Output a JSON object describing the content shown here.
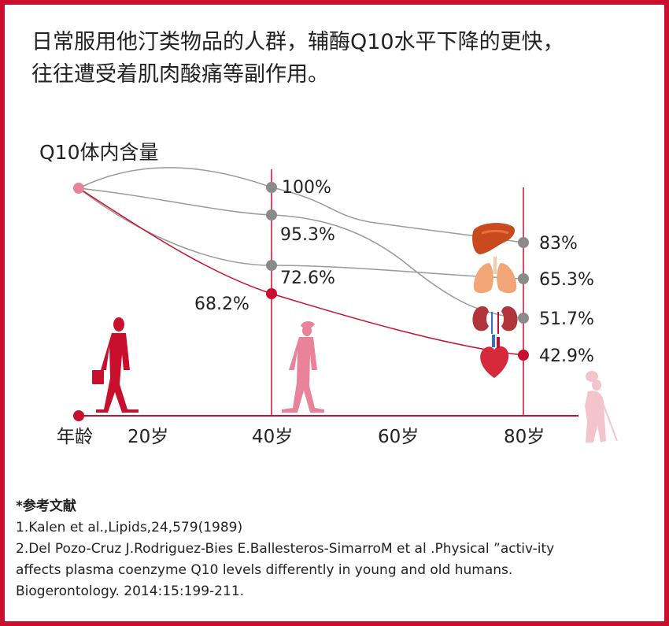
{
  "headline": {
    "line1": "日常服用他汀类物品的人群，辅酶Q10水平下降的更快，",
    "line2": "往往遭受着肌肉酸痛等副作用。"
  },
  "chart_data": {
    "type": "line",
    "ylabel": "Q10体内含量",
    "xlabel": "年龄",
    "x_ticks": [
      "20岁",
      "40岁",
      "60岁",
      "80岁"
    ],
    "series": [
      {
        "organ": "liver-icon",
        "color": "#999999",
        "points": [
          [
            "40岁",
            "100%"
          ],
          [
            "80岁",
            "83%"
          ]
        ],
        "values": [
          100,
          83
        ]
      },
      {
        "organ": "lung-icon",
        "color": "#999999",
        "points": [
          [
            "40岁",
            "72.6%"
          ],
          [
            "80岁",
            "65.3%"
          ]
        ],
        "values": [
          72.6,
          65.3
        ]
      },
      {
        "organ": "kidney-icon",
        "color": "#999999",
        "points": [
          [
            "40岁",
            "95.3%"
          ],
          [
            "80岁",
            "51.7%"
          ]
        ],
        "values": [
          95.3,
          51.7
        ]
      },
      {
        "organ": "heart-icon",
        "color": "#c8102e",
        "points": [
          [
            "40岁",
            "68.2%"
          ],
          [
            "80岁",
            "42.9%"
          ]
        ],
        "values": [
          68.2,
          42.9
        ]
      }
    ],
    "colors": {
      "accent": "#c8102e",
      "gray": "#999999",
      "pink": "#e8839a"
    }
  },
  "references": {
    "title": "*参考文献",
    "items": [
      "1.Kalen et al.,Lipids,24,579(1989)",
      "2.Del Pozo-Cruz J.Rodriguez-Bies E.Ballesteros-SimarroM et al .Physical ”activ-ity",
      "affects plasma coenzyme Q10 levels differently in young and old humans.",
      "Biogerontology. 2014:15:199-211."
    ]
  }
}
